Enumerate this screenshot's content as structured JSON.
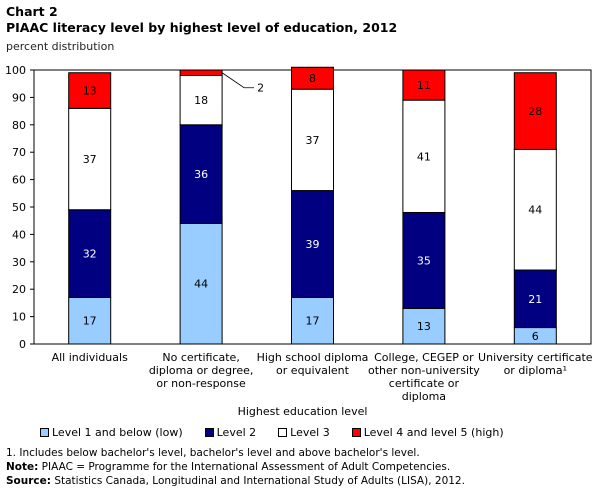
{
  "chart_title": "Chart 2",
  "chart_subtitle": "PIAAC literacy level by highest level of education, 2012",
  "unit_label": "percent distribution",
  "chart_data": {
    "type": "bar",
    "stacked": true,
    "xlabel": "Highest education level",
    "ylabel": "percent distribution",
    "ylim": [
      0,
      100
    ],
    "yticks": [
      0,
      10,
      20,
      30,
      40,
      50,
      60,
      70,
      80,
      90,
      100
    ],
    "categories": [
      [
        "All individuals"
      ],
      [
        "No certificate,",
        "diploma or degree,",
        "or non-response"
      ],
      [
        "High school diploma",
        "or equivalent"
      ],
      [
        "College, CEGEP or",
        "other non-university",
        "certificate or",
        "diploma"
      ],
      [
        "University certificate",
        "or diploma¹"
      ]
    ],
    "series": [
      {
        "name": "Level 1 and below (low)",
        "color": "#99ccff",
        "label_color": "#000000",
        "values": [
          17,
          44,
          17,
          13,
          6
        ],
        "labels": [
          "17",
          "44",
          "17",
          "13",
          "6"
        ]
      },
      {
        "name": "Level 2",
        "color": "#000080",
        "label_color": "#ffffff",
        "values": [
          32,
          36,
          39,
          35,
          21
        ],
        "labels": [
          "32",
          "36",
          "39",
          "35",
          "21"
        ]
      },
      {
        "name": "Level 3",
        "color": "#ffffff",
        "label_color": "#000000",
        "values": [
          37,
          18,
          37,
          41,
          44
        ],
        "labels": [
          "37",
          "18",
          "37",
          "41",
          "44"
        ]
      },
      {
        "name": "Level 4 and level 5 (high)",
        "color": "#ff0000",
        "label_color": "#000000",
        "values": [
          13,
          2,
          8,
          11,
          28
        ],
        "labels": [
          "13",
          "2",
          "8",
          "11",
          "28"
        ]
      }
    ],
    "callouts": [
      {
        "category_index": 1,
        "series_index": 3,
        "text": "2"
      }
    ]
  },
  "notes": {
    "footnote": "1. Includes below bachelor's level, bachelor's level and above bachelor's level.",
    "note_label": "Note:",
    "note_text": " PIAAC = Programme for the International Assessment of Adult Competencies.",
    "source_label": "Source:",
    "source_text": " Statistics Canada, Longitudinal and International Study of Adults (LISA), 2012."
  }
}
